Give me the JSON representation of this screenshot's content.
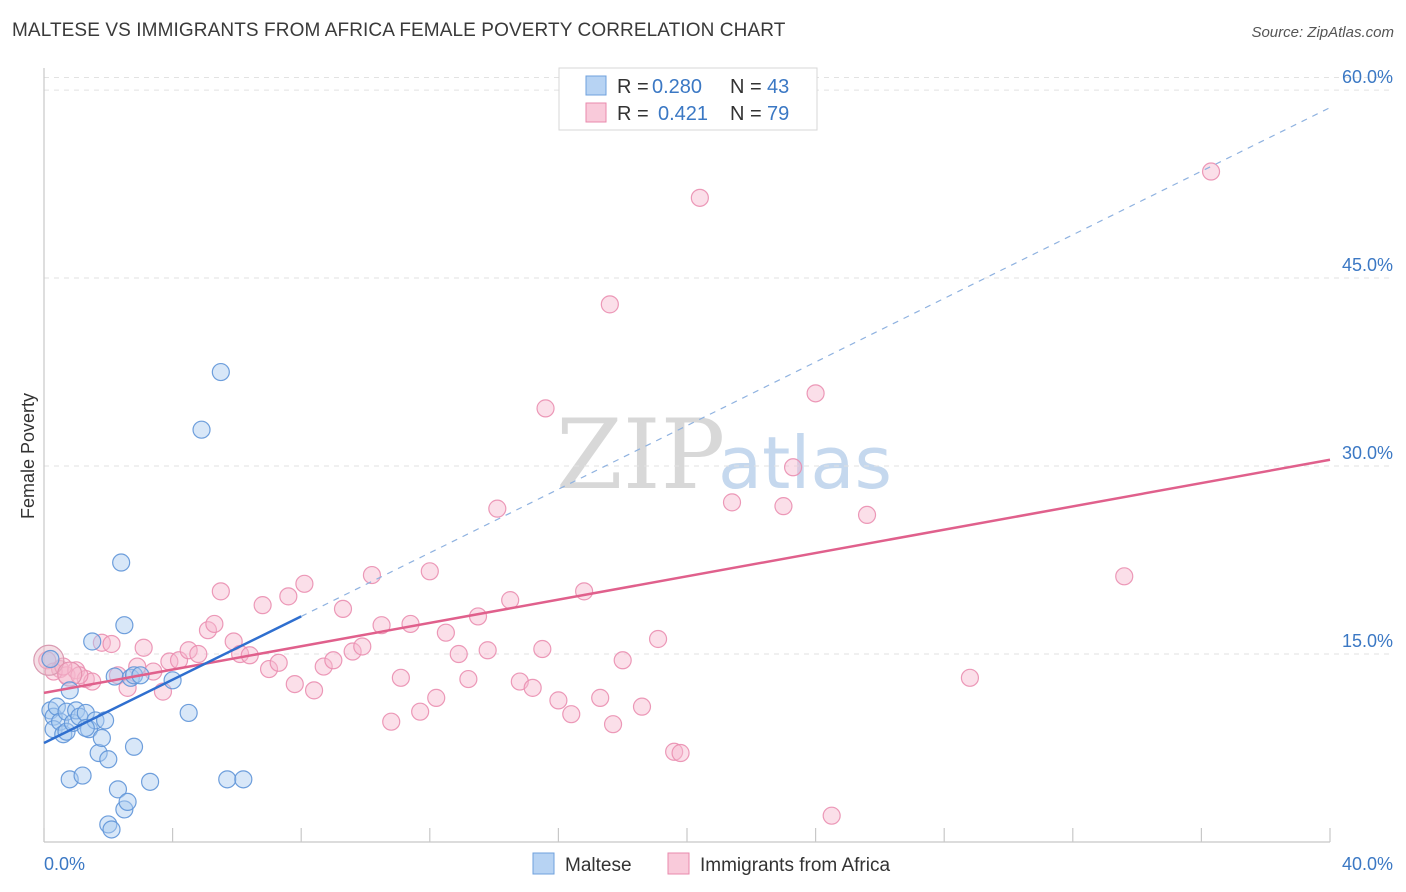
{
  "header": {
    "title": "MALTESE VS IMMIGRANTS FROM AFRICA FEMALE POVERTY CORRELATION CHART",
    "source": "Source: ZipAtlas.com"
  },
  "watermark": {
    "zip": "ZIP",
    "atlas": "atlas"
  },
  "chart_data": {
    "type": "scatter",
    "title": "MALTESE VS IMMIGRANTS FROM AFRICA FEMALE POVERTY CORRELATION CHART",
    "xlabel": "",
    "ylabel": "Female Poverty",
    "xlim": [
      0,
      40
    ],
    "ylim": [
      0,
      62
    ],
    "x_tick_labels": {
      "left": "0.0%",
      "right": "40.0%"
    },
    "y_ticks": [
      {
        "value": 15,
        "label": "15.0%"
      },
      {
        "value": 30,
        "label": "30.0%"
      },
      {
        "value": 45,
        "label": "45.0%"
      },
      {
        "value": 60,
        "label": "60.0%"
      }
    ],
    "legend_stats": [
      {
        "r_label": "R = ",
        "r_value": "0.280",
        "n_label": "N = ",
        "n_value": "43"
      },
      {
        "r_label": "R = ",
        "r_value": "0.421",
        "n_label": "N = ",
        "n_value": "79"
      }
    ],
    "series": [
      {
        "name": "Maltese",
        "color": "#8fb8e8",
        "line_color": "#2f6fcf",
        "trend": {
          "x0": 0,
          "y0": 7.9,
          "x1": 8,
          "y1": 18.0,
          "dash_to_x": 40,
          "dash_to_y": 58.6
        },
        "points": [
          [
            0.2,
            14.6
          ],
          [
            0.2,
            10.5
          ],
          [
            0.3,
            10.0
          ],
          [
            0.3,
            9.0
          ],
          [
            0.4,
            10.8
          ],
          [
            0.5,
            9.6
          ],
          [
            0.6,
            8.6
          ],
          [
            0.7,
            8.8
          ],
          [
            0.7,
            10.4
          ],
          [
            0.8,
            5.0
          ],
          [
            0.8,
            12.1
          ],
          [
            0.9,
            9.5
          ],
          [
            1.0,
            10.5
          ],
          [
            1.1,
            10.0
          ],
          [
            1.2,
            5.3
          ],
          [
            1.3,
            10.3
          ],
          [
            1.4,
            9.0
          ],
          [
            1.5,
            16.0
          ],
          [
            1.6,
            9.7
          ],
          [
            1.7,
            7.1
          ],
          [
            1.8,
            8.3
          ],
          [
            1.9,
            9.7
          ],
          [
            2.0,
            6.6
          ],
          [
            2.0,
            1.4
          ],
          [
            2.1,
            1.0
          ],
          [
            2.2,
            13.2
          ],
          [
            2.3,
            4.2
          ],
          [
            2.4,
            22.3
          ],
          [
            2.5,
            17.3
          ],
          [
            2.5,
            2.6
          ],
          [
            2.6,
            3.2
          ],
          [
            2.7,
            13.1
          ],
          [
            2.8,
            13.3
          ],
          [
            2.8,
            7.6
          ],
          [
            3.3,
            4.8
          ],
          [
            4.0,
            12.9
          ],
          [
            4.5,
            10.3
          ],
          [
            4.9,
            32.9
          ],
          [
            5.5,
            37.5
          ],
          [
            5.7,
            5.0
          ],
          [
            6.2,
            5.0
          ],
          [
            3.0,
            13.3
          ],
          [
            1.3,
            9.1
          ]
        ]
      },
      {
        "name": "Immigrants from Africa",
        "color": "#f3a6c0",
        "line_color": "#e0608c",
        "trend": {
          "x0": 0,
          "y0": 11.9,
          "x1": 40,
          "y1": 30.5
        },
        "points": [
          [
            0.1,
            14.5
          ],
          [
            0.5,
            13.8
          ],
          [
            0.7,
            13.3
          ],
          [
            1.0,
            13.7
          ],
          [
            1.3,
            13.0
          ],
          [
            1.5,
            12.8
          ],
          [
            1.8,
            15.9
          ],
          [
            2.1,
            15.8
          ],
          [
            2.3,
            13.3
          ],
          [
            2.6,
            12.3
          ],
          [
            2.9,
            14.0
          ],
          [
            3.1,
            15.5
          ],
          [
            3.4,
            13.6
          ],
          [
            3.7,
            12.0
          ],
          [
            3.9,
            14.4
          ],
          [
            4.2,
            14.5
          ],
          [
            4.5,
            15.3
          ],
          [
            4.8,
            15.0
          ],
          [
            5.1,
            16.9
          ],
          [
            5.3,
            17.4
          ],
          [
            5.5,
            20.0
          ],
          [
            5.9,
            16.0
          ],
          [
            6.1,
            15.0
          ],
          [
            6.4,
            14.9
          ],
          [
            6.8,
            18.9
          ],
          [
            7.0,
            13.8
          ],
          [
            7.3,
            14.3
          ],
          [
            7.6,
            19.6
          ],
          [
            7.8,
            12.6
          ],
          [
            8.1,
            20.6
          ],
          [
            8.4,
            12.1
          ],
          [
            8.7,
            14.0
          ],
          [
            9.0,
            14.5
          ],
          [
            9.3,
            18.6
          ],
          [
            9.6,
            15.2
          ],
          [
            9.9,
            15.6
          ],
          [
            10.2,
            21.3
          ],
          [
            10.5,
            17.3
          ],
          [
            10.8,
            9.6
          ],
          [
            11.1,
            13.1
          ],
          [
            11.4,
            17.4
          ],
          [
            11.7,
            10.4
          ],
          [
            12.0,
            21.6
          ],
          [
            12.2,
            11.5
          ],
          [
            12.5,
            16.7
          ],
          [
            12.9,
            15.0
          ],
          [
            13.2,
            13.0
          ],
          [
            13.5,
            18.0
          ],
          [
            13.8,
            15.3
          ],
          [
            14.1,
            26.6
          ],
          [
            14.5,
            19.3
          ],
          [
            14.8,
            12.8
          ],
          [
            15.2,
            12.3
          ],
          [
            15.5,
            15.4
          ],
          [
            15.6,
            34.6
          ],
          [
            16.0,
            11.3
          ],
          [
            16.4,
            10.2
          ],
          [
            16.8,
            20.0
          ],
          [
            17.3,
            11.5
          ],
          [
            17.7,
            9.4
          ],
          [
            17.6,
            42.9
          ],
          [
            18.0,
            14.5
          ],
          [
            18.6,
            10.8
          ],
          [
            19.1,
            16.2
          ],
          [
            19.6,
            7.2
          ],
          [
            19.8,
            7.1
          ],
          [
            20.4,
            51.4
          ],
          [
            21.4,
            27.1
          ],
          [
            23.0,
            26.8
          ],
          [
            23.3,
            29.9
          ],
          [
            24.0,
            35.8
          ],
          [
            24.5,
            2.1
          ],
          [
            25.6,
            26.1
          ],
          [
            28.8,
            13.1
          ],
          [
            33.6,
            21.2
          ],
          [
            36.3,
            53.5
          ],
          [
            0.3,
            13.6
          ],
          [
            1.1,
            13.3
          ],
          [
            0.6,
            14.0
          ]
        ]
      }
    ]
  },
  "bottom_legend": [
    {
      "label": "Maltese",
      "color": "#b7d3f3",
      "border": "#6fa0dc"
    },
    {
      "label": "Immigrants from Africa",
      "color": "#f9cada",
      "border": "#e98aac"
    }
  ]
}
